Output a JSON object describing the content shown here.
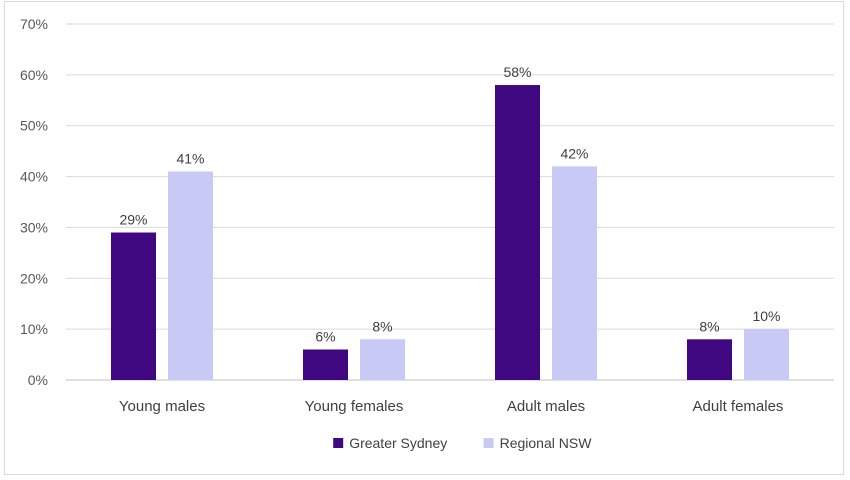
{
  "chart_data": {
    "type": "bar",
    "categories": [
      "Young males",
      "Young females",
      "Adult males",
      "Adult females"
    ],
    "series": [
      {
        "name": "Greater Sydney",
        "values": [
          29,
          6,
          58,
          8
        ],
        "labels": [
          "29%",
          "6%",
          "58%",
          "8%"
        ],
        "color": "#3f0780"
      },
      {
        "name": "Regional NSW",
        "values": [
          41,
          8,
          42,
          10
        ],
        "labels": [
          "41%",
          "8%",
          "42%",
          "10%"
        ],
        "color": "#c9c9f5"
      }
    ],
    "ylim": [
      0,
      70
    ],
    "yticks": [
      0,
      10,
      20,
      30,
      40,
      50,
      60,
      70
    ],
    "ytick_labels": [
      "0%",
      "10%",
      "20%",
      "30%",
      "40%",
      "50%",
      "60%",
      "70%"
    ],
    "gridlines": true,
    "legend": "bottom",
    "title": "",
    "xlabel": "",
    "ylabel": ""
  }
}
